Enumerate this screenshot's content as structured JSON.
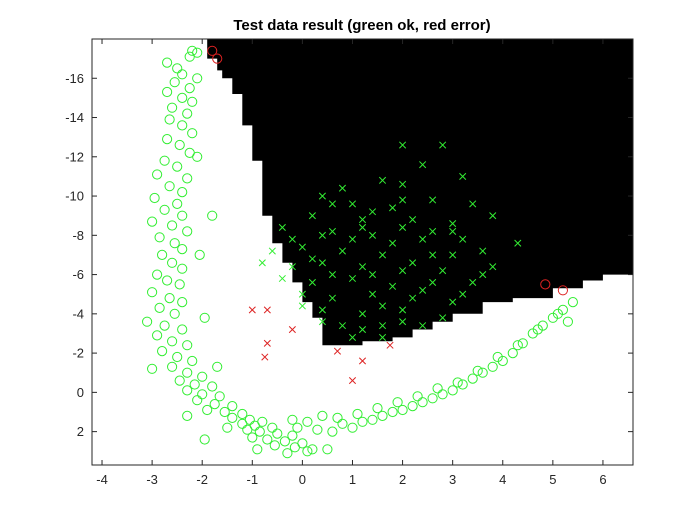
{
  "chart_data": {
    "type": "scatter",
    "title": "Test data result (green ok, red error)",
    "xlabel": "",
    "ylabel": "",
    "xlim": [
      -4.2,
      6.6
    ],
    "ylim": [
      3.7,
      -18.0
    ],
    "y_axis_direction": "reversed",
    "grid": false,
    "legend": "none",
    "xticks": [
      -4,
      -3,
      -2,
      -1,
      0,
      1,
      2,
      3,
      4,
      5,
      6
    ],
    "yticks": [
      -16,
      -14,
      -12,
      -10,
      -8,
      -6,
      -4,
      -2,
      0,
      2
    ],
    "background_color": "#ffffff",
    "region_color": "#000000",
    "ok_color": "#33ee33",
    "error_color": "#dd2222",
    "decision_region_boundary": [
      [
        -1.9,
        -18.0
      ],
      [
        -1.9,
        -17.0
      ],
      [
        -1.7,
        -17.0
      ],
      [
        -1.7,
        -16.4
      ],
      [
        -1.6,
        -16.4
      ],
      [
        -1.6,
        -16.0
      ],
      [
        -1.4,
        -16.0
      ],
      [
        -1.4,
        -15.2
      ],
      [
        -1.2,
        -15.2
      ],
      [
        -1.2,
        -13.6
      ],
      [
        -1.0,
        -13.6
      ],
      [
        -1.0,
        -11.8
      ],
      [
        -0.8,
        -11.8
      ],
      [
        -0.8,
        -9.0
      ],
      [
        -0.6,
        -9.0
      ],
      [
        -0.6,
        -7.6
      ],
      [
        -0.4,
        -7.6
      ],
      [
        -0.4,
        -6.6
      ],
      [
        -0.2,
        -6.6
      ],
      [
        -0.2,
        -5.6
      ],
      [
        0.0,
        -5.6
      ],
      [
        0.0,
        -4.6
      ],
      [
        0.2,
        -4.6
      ],
      [
        0.2,
        -3.8
      ],
      [
        0.4,
        -3.8
      ],
      [
        0.4,
        -2.4
      ],
      [
        1.2,
        -2.4
      ],
      [
        1.2,
        -2.6
      ],
      [
        1.8,
        -2.6
      ],
      [
        1.8,
        -2.8
      ],
      [
        2.2,
        -2.8
      ],
      [
        2.2,
        -3.2
      ],
      [
        2.6,
        -3.2
      ],
      [
        2.6,
        -3.6
      ],
      [
        3.0,
        -3.6
      ],
      [
        3.0,
        -4.0
      ],
      [
        3.6,
        -4.0
      ],
      [
        3.6,
        -4.6
      ],
      [
        4.2,
        -4.6
      ],
      [
        4.2,
        -4.8
      ],
      [
        5.0,
        -4.8
      ],
      [
        5.0,
        -5.3
      ],
      [
        5.6,
        -5.3
      ],
      [
        5.6,
        -5.7
      ],
      [
        6.0,
        -5.7
      ],
      [
        6.0,
        -6.0
      ],
      [
        6.6,
        -6.0
      ],
      [
        6.6,
        -18.0
      ]
    ],
    "series": [
      {
        "marker": "circle",
        "color": "#33ee33",
        "points": [
          [
            -2.2,
            -17.4
          ],
          [
            -2.1,
            -17.3
          ],
          [
            -2.25,
            -17.1
          ],
          [
            -2.7,
            -16.8
          ],
          [
            -2.5,
            -16.5
          ],
          [
            -2.4,
            -16.2
          ],
          [
            -2.1,
            -16.0
          ],
          [
            -2.55,
            -15.8
          ],
          [
            -2.25,
            -15.5
          ],
          [
            -2.7,
            -15.3
          ],
          [
            -2.4,
            -15.0
          ],
          [
            -2.2,
            -14.8
          ],
          [
            -2.6,
            -14.5
          ],
          [
            -2.3,
            -14.2
          ],
          [
            -2.65,
            -13.9
          ],
          [
            -2.4,
            -13.6
          ],
          [
            -2.2,
            -13.2
          ],
          [
            -2.7,
            -12.9
          ],
          [
            -2.45,
            -12.6
          ],
          [
            -2.25,
            -12.2
          ],
          [
            -2.75,
            -11.8
          ],
          [
            -2.5,
            -11.5
          ],
          [
            -2.9,
            -11.1
          ],
          [
            -2.3,
            -10.9
          ],
          [
            -2.65,
            -10.5
          ],
          [
            -2.4,
            -10.2
          ],
          [
            -2.95,
            -9.9
          ],
          [
            -2.5,
            -9.6
          ],
          [
            -2.75,
            -9.3
          ],
          [
            -2.4,
            -9.0
          ],
          [
            -1.8,
            -9.0
          ],
          [
            -3.0,
            -8.7
          ],
          [
            -2.6,
            -8.5
          ],
          [
            -2.3,
            -8.2
          ],
          [
            -2.85,
            -7.9
          ],
          [
            -2.55,
            -7.6
          ],
          [
            -2.4,
            -7.3
          ],
          [
            -2.8,
            -7.0
          ],
          [
            -2.6,
            -6.6
          ],
          [
            -2.4,
            -6.3
          ],
          [
            -2.9,
            -6.0
          ],
          [
            -2.7,
            -5.7
          ],
          [
            -2.45,
            -5.5
          ],
          [
            -3.0,
            -5.1
          ],
          [
            -2.65,
            -4.8
          ],
          [
            -2.4,
            -4.6
          ],
          [
            -2.85,
            -4.3
          ],
          [
            -2.55,
            -4.0
          ],
          [
            -3.1,
            -3.6
          ],
          [
            -2.75,
            -3.4
          ],
          [
            -2.4,
            -3.2
          ],
          [
            -2.9,
            -2.9
          ],
          [
            -2.6,
            -2.6
          ],
          [
            -2.3,
            -2.4
          ],
          [
            -2.8,
            -2.1
          ],
          [
            -2.5,
            -1.8
          ],
          [
            -2.2,
            -1.6
          ],
          [
            -2.6,
            -1.3
          ],
          [
            -3.0,
            -1.2
          ],
          [
            -2.3,
            -1.0
          ],
          [
            -2.0,
            -0.8
          ],
          [
            -2.45,
            -0.6
          ],
          [
            -2.15,
            -0.4
          ],
          [
            -1.8,
            -0.3
          ],
          [
            -2.3,
            -0.1
          ],
          [
            -2.0,
            0.1
          ],
          [
            -1.65,
            0.2
          ],
          [
            -2.1,
            0.4
          ],
          [
            -1.75,
            0.6
          ],
          [
            -1.4,
            0.7
          ],
          [
            -1.9,
            0.9
          ],
          [
            -1.55,
            1.0
          ],
          [
            -1.2,
            1.1
          ],
          [
            -2.3,
            1.2
          ],
          [
            -1.4,
            1.3
          ],
          [
            -1.05,
            1.4
          ],
          [
            -0.8,
            1.5
          ],
          [
            -1.2,
            1.6
          ],
          [
            -0.95,
            1.7
          ],
          [
            -1.5,
            1.8
          ],
          [
            -0.6,
            1.8
          ],
          [
            -1.1,
            1.9
          ],
          [
            -0.85,
            2.0
          ],
          [
            -0.5,
            2.1
          ],
          [
            -0.2,
            2.2
          ],
          [
            -1.0,
            2.3
          ],
          [
            -1.95,
            2.4
          ],
          [
            -0.7,
            2.4
          ],
          [
            -0.35,
            2.5
          ],
          [
            0.0,
            2.6
          ],
          [
            -0.55,
            2.7
          ],
          [
            -0.15,
            2.8
          ],
          [
            0.2,
            2.9
          ],
          [
            -0.9,
            2.9
          ],
          [
            0.5,
            2.9
          ],
          [
            -0.3,
            3.1
          ],
          [
            0.1,
            3.0
          ],
          [
            -0.1,
            1.8
          ],
          [
            0.3,
            1.9
          ],
          [
            0.6,
            2.0
          ],
          [
            0.8,
            1.6
          ],
          [
            1.0,
            1.8
          ],
          [
            1.2,
            1.5
          ],
          [
            1.4,
            1.4
          ],
          [
            1.6,
            1.2
          ],
          [
            1.8,
            1.0
          ],
          [
            2.0,
            0.9
          ],
          [
            2.2,
            0.7
          ],
          [
            2.4,
            0.5
          ],
          [
            2.6,
            0.3
          ],
          [
            2.8,
            0.1
          ],
          [
            3.0,
            -0.1
          ],
          [
            3.2,
            -0.4
          ],
          [
            3.4,
            -0.7
          ],
          [
            3.6,
            -1.0
          ],
          [
            3.8,
            -1.3
          ],
          [
            4.0,
            -1.6
          ],
          [
            4.2,
            -2.0
          ],
          [
            4.4,
            -2.5
          ],
          [
            4.6,
            -3.0
          ],
          [
            4.8,
            -3.4
          ],
          [
            5.0,
            -3.8
          ],
          [
            5.2,
            -4.2
          ],
          [
            5.4,
            -4.6
          ],
          [
            -0.2,
            1.4
          ],
          [
            0.1,
            1.5
          ],
          [
            0.4,
            1.2
          ],
          [
            0.7,
            1.3
          ],
          [
            1.1,
            1.1
          ],
          [
            1.5,
            0.8
          ],
          [
            1.9,
            0.5
          ],
          [
            2.3,
            0.2
          ],
          [
            2.7,
            -0.2
          ],
          [
            3.1,
            -0.5
          ],
          [
            3.5,
            -1.1
          ],
          [
            3.9,
            -1.8
          ],
          [
            4.3,
            -2.4
          ],
          [
            4.7,
            -3.2
          ],
          [
            5.1,
            -4.0
          ],
          [
            5.3,
            -3.6
          ],
          [
            -2.05,
            -7.0
          ],
          [
            -1.95,
            -3.8
          ],
          [
            -2.1,
            -12.0
          ],
          [
            -1.7,
            -1.3
          ]
        ]
      },
      {
        "marker": "cross",
        "color": "#33ee33",
        "points": [
          [
            2.0,
            -12.6
          ],
          [
            2.8,
            -12.6
          ],
          [
            2.4,
            -11.6
          ],
          [
            0.4,
            -10.0
          ],
          [
            0.8,
            -10.4
          ],
          [
            1.6,
            -10.8
          ],
          [
            3.2,
            -11.0
          ],
          [
            2.0,
            -10.6
          ],
          [
            1.0,
            -9.6
          ],
          [
            1.8,
            -9.4
          ],
          [
            2.6,
            -9.8
          ],
          [
            3.4,
            -9.6
          ],
          [
            0.2,
            -9.0
          ],
          [
            1.2,
            -8.8
          ],
          [
            2.2,
            -8.8
          ],
          [
            3.0,
            -8.6
          ],
          [
            3.8,
            -9.0
          ],
          [
            -0.4,
            -8.4
          ],
          [
            0.6,
            -8.2
          ],
          [
            1.4,
            -8.0
          ],
          [
            2.4,
            -7.8
          ],
          [
            3.2,
            -7.8
          ],
          [
            4.3,
            -7.6
          ],
          [
            -0.6,
            -7.2
          ],
          [
            0.0,
            -7.4
          ],
          [
            0.8,
            -7.2
          ],
          [
            1.6,
            -7.0
          ],
          [
            2.6,
            -7.0
          ],
          [
            3.6,
            -7.2
          ],
          [
            -0.8,
            -6.6
          ],
          [
            -0.2,
            -6.4
          ],
          [
            0.4,
            -6.6
          ],
          [
            1.2,
            -6.4
          ],
          [
            2.0,
            -6.2
          ],
          [
            2.8,
            -6.2
          ],
          [
            3.8,
            -6.4
          ],
          [
            -0.4,
            -5.8
          ],
          [
            0.2,
            -5.6
          ],
          [
            1.0,
            -5.8
          ],
          [
            1.8,
            -5.4
          ],
          [
            2.6,
            -5.6
          ],
          [
            3.4,
            -5.6
          ],
          [
            0.0,
            -5.0
          ],
          [
            0.6,
            -4.8
          ],
          [
            1.4,
            -5.0
          ],
          [
            2.2,
            -4.8
          ],
          [
            3.0,
            -4.6
          ],
          [
            0.4,
            -4.2
          ],
          [
            1.2,
            -4.0
          ],
          [
            2.0,
            -4.2
          ],
          [
            2.8,
            -3.8
          ],
          [
            0.8,
            -3.4
          ],
          [
            1.6,
            -3.4
          ],
          [
            2.4,
            -3.4
          ],
          [
            1.0,
            -2.8
          ],
          [
            1.6,
            -2.8
          ],
          [
            0.0,
            -4.4
          ],
          [
            0.6,
            -9.6
          ],
          [
            1.4,
            -9.2
          ],
          [
            2.0,
            -9.8
          ],
          [
            2.6,
            -8.2
          ],
          [
            1.8,
            -7.6
          ],
          [
            1.0,
            -7.8
          ],
          [
            0.2,
            -6.8
          ],
          [
            2.2,
            -6.6
          ],
          [
            3.0,
            -7.0
          ],
          [
            1.4,
            -6.0
          ],
          [
            0.6,
            -6.0
          ],
          [
            2.4,
            -5.2
          ],
          [
            1.6,
            -4.4
          ],
          [
            3.2,
            -5.0
          ],
          [
            2.0,
            -3.6
          ],
          [
            1.2,
            -3.2
          ],
          [
            0.4,
            -3.6
          ],
          [
            3.6,
            -6.0
          ],
          [
            3.0,
            -8.2
          ],
          [
            2.0,
            -8.4
          ],
          [
            1.2,
            -8.4
          ],
          [
            0.4,
            -8.0
          ],
          [
            -0.2,
            -7.8
          ]
        ]
      },
      {
        "marker": "circle",
        "color": "#dd2222",
        "points": [
          [
            -1.8,
            -17.4
          ],
          [
            -1.7,
            -17.0
          ],
          [
            4.85,
            -5.5
          ],
          [
            5.2,
            -5.2
          ]
        ]
      },
      {
        "marker": "cross",
        "color": "#dd2222",
        "points": [
          [
            -1.0,
            -4.2
          ],
          [
            -0.7,
            -4.2
          ],
          [
            -0.7,
            -2.5
          ],
          [
            -0.75,
            -1.8
          ],
          [
            -0.2,
            -3.2
          ],
          [
            0.7,
            -2.1
          ],
          [
            1.2,
            -1.6
          ],
          [
            1.75,
            -2.4
          ],
          [
            1.0,
            -0.6
          ]
        ]
      }
    ]
  }
}
